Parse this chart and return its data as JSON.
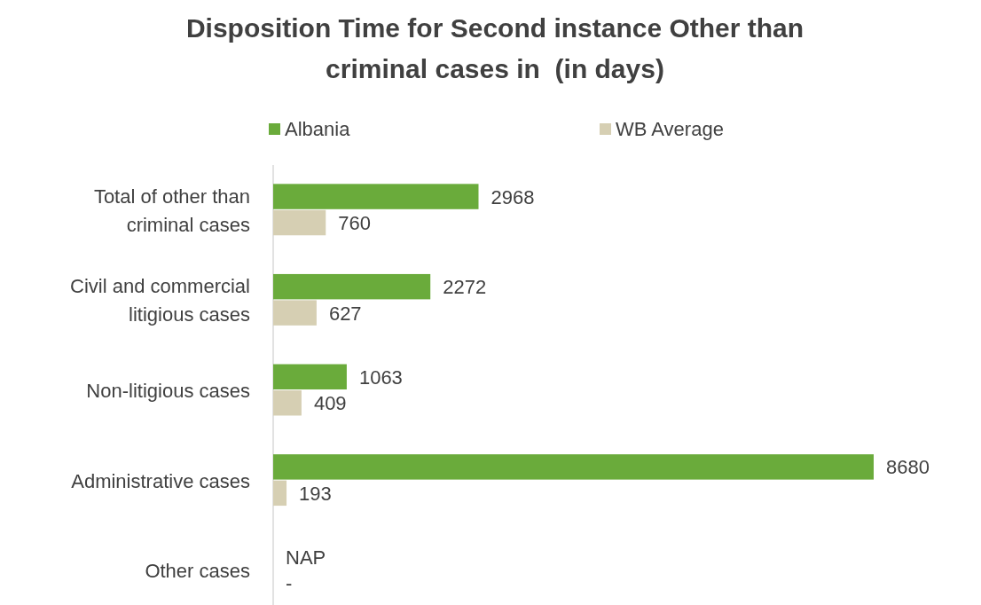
{
  "chart_data": {
    "type": "bar",
    "orientation": "horizontal",
    "title": "Disposition Time for Second instance Other than criminal cases in  (in days)",
    "categories": [
      "Total of other than criminal cases",
      "Civil and commercial litigious cases",
      "Non-litigious cases",
      "Administrative cases",
      "Other cases"
    ],
    "series": [
      {
        "name": "Albania",
        "color": "#6aab3b",
        "values": [
          2968,
          2272,
          1063,
          8680,
          null
        ],
        "value_labels": [
          "2968",
          "2272",
          "1063",
          "8680",
          "NAP"
        ]
      },
      {
        "name": "WB Average",
        "color": "#d6cfb3",
        "values": [
          760,
          627,
          409,
          193,
          null
        ],
        "value_labels": [
          "760",
          "627",
          "409",
          "193",
          "-"
        ]
      }
    ],
    "legend": "top"
  }
}
